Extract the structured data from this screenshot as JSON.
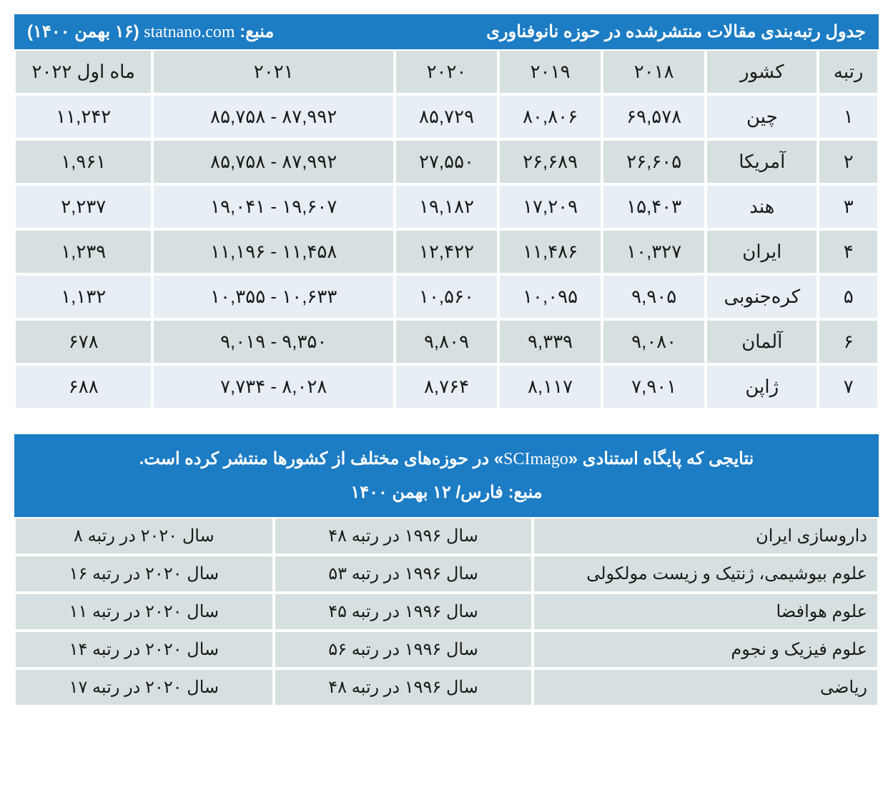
{
  "table1": {
    "header_right": "جدول رتبه‌بندی مقالات منتشرشده در حوزه نانوفناوری",
    "header_left_pre": "منبع:",
    "header_left_site": "statnano.com",
    "header_left_date": "(۱۶ بهمن ۱۴۰۰)",
    "columns": [
      "رتبه",
      "کشور",
      "۲۰۱۸",
      "۲۰۱۹",
      "۲۰۲۰",
      "۲۰۲۱",
      "ماه اول ۲۰۲۲"
    ],
    "rows": [
      [
        "۱",
        "چین",
        "۶۹,۵۷۸",
        "۸۰,۸۰۶",
        "۸۵,۷۲۹",
        "۸۷,۹۹۲ - ۸۵,۷۵۸",
        "۱۱,۲۴۲"
      ],
      [
        "۲",
        "آمریکا",
        "۲۶,۶۰۵",
        "۲۶,۶۸۹",
        "۲۷,۵۵۰",
        "۸۷,۹۹۲ - ۸۵,۷۵۸",
        "۱,۹۶۱"
      ],
      [
        "۳",
        "هند",
        "۱۵,۴۰۳",
        "۱۷,۲۰۹",
        "۱۹,۱۸۲",
        "۱۹,۶۰۷ - ۱۹,۰۴۱",
        "۲,۲۳۷"
      ],
      [
        "۴",
        "ایران",
        "۱۰,۳۲۷",
        "۱۱,۴۸۶",
        "۱۲,۴۲۲",
        "۱۱,۴۵۸ - ۱۱,۱۹۶",
        "۱,۲۳۹"
      ],
      [
        "۵",
        "کره‌جنوبی",
        "۹,۹۰۵",
        "۱۰,۰۹۵",
        "۱۰,۵۶۰",
        "۱۰,۶۳۳ - ۱۰,۳۵۵",
        "۱,۱۳۲"
      ],
      [
        "۶",
        "آلمان",
        "۹,۰۸۰",
        "۹,۳۳۹",
        "۹,۸۰۹",
        "۹,۳۵۰ - ۹,۰۱۹",
        "۶۷۸"
      ],
      [
        "۷",
        "ژاپن",
        "۷,۹۰۱",
        "۸,۱۱۷",
        "۸,۷۶۴",
        "۸,۰۲۸ - ۷,۷۳۴",
        "۶۸۸"
      ]
    ]
  },
  "table2": {
    "header_line1_pre": "نتایجی که پایگاه استنادی «",
    "header_line1_site": "SCImago",
    "header_line1_post": "» در حوزه‌های مختلف از کشورها منتشر کرده است.",
    "header_line2": "منبع: فارس/ ۱۲ بهمن ۱۴۰۰",
    "rows": [
      [
        "داروسازی ایران",
        "سال ۱۹۹۶ در رتبه ۴۸",
        "سال ۲۰۲۰ در رتبه ۸"
      ],
      [
        "علوم بیوشیمی، ژنتیک و زیست مولکولی",
        "سال ۱۹۹۶ در رتبه ۵۳",
        "سال ۲۰۲۰ در رتبه ۱۶"
      ],
      [
        "علوم هوافضا",
        "سال ۱۹۹۶ در رتبه ۴۵",
        "سال ۲۰۲۰ در رتبه ۱۱"
      ],
      [
        "علوم فیزیک و نجوم",
        "سال ۱۹۹۶ در رتبه ۵۶",
        "سال ۲۰۲۰ در رتبه ۱۴"
      ],
      [
        "ریاضی",
        "سال ۱۹۹۶ در رتبه ۴۸",
        "سال ۲۰۲۰ در رتبه ۱۷"
      ]
    ]
  },
  "style": {
    "header_bg": "#1c7cc4",
    "header_fg": "#ffffff",
    "row_odd_bg": "#e7eef4",
    "row_even_bg": "#d7e0e0",
    "cell_border": "#ffffff",
    "text_color": "#1a1a1a"
  }
}
